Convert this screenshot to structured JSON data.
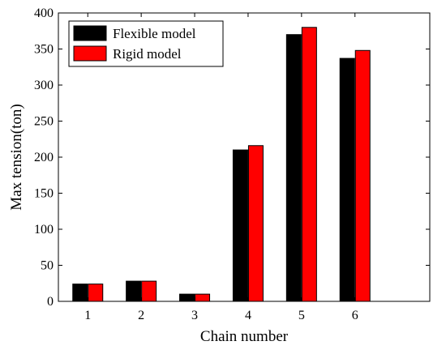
{
  "chart_data": {
    "type": "bar",
    "categories": [
      "1",
      "2",
      "3",
      "4",
      "5",
      "6"
    ],
    "series": [
      {
        "name": "Flexible model",
        "color": "#000000",
        "values": [
          24,
          28,
          10,
          210,
          370,
          337
        ]
      },
      {
        "name": "Rigid model",
        "color": "#ff0000",
        "values": [
          24,
          28,
          10,
          216,
          380,
          348
        ]
      }
    ],
    "xlabel": "Chain number",
    "ylabel": "Max tension(ton)",
    "ylim": [
      0,
      400
    ],
    "yticks": [
      "0",
      "50",
      "100",
      "150",
      "200",
      "250",
      "300",
      "350",
      "400"
    ],
    "legend_position": "top-left",
    "grid": false
  }
}
